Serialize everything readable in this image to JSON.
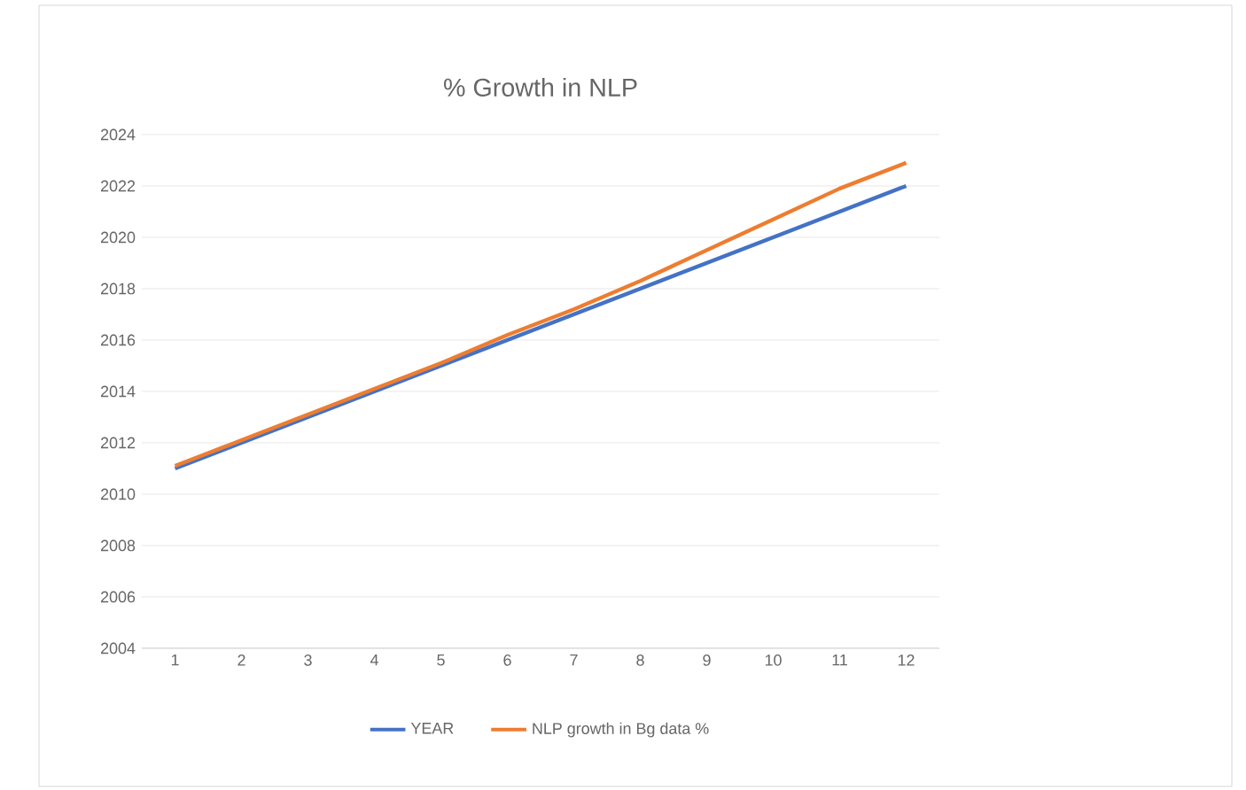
{
  "chart_data": {
    "type": "line",
    "title": "% Growth in NLP",
    "categories": [
      "1",
      "2",
      "3",
      "4",
      "5",
      "6",
      "7",
      "8",
      "9",
      "10",
      "11",
      "12"
    ],
    "series": [
      {
        "name": "YEAR",
        "color": "#4472c4",
        "values": [
          2011,
          2012,
          2013,
          2014,
          2015,
          2016,
          2017,
          2018,
          2019,
          2020,
          2021,
          2022
        ]
      },
      {
        "name": "NLP growth in Bg data %",
        "color": "#ed7d31",
        "values": [
          2011.1,
          2012.1,
          2013.1,
          2014.1,
          2015.1,
          2016.2,
          2017.2,
          2018.3,
          2019.5,
          2020.7,
          2021.9,
          2022.9
        ]
      }
    ],
    "ylim": [
      2004,
      2024
    ],
    "yticks": [
      2004,
      2006,
      2008,
      2010,
      2012,
      2014,
      2016,
      2018,
      2020,
      2022,
      2024
    ],
    "grid": "y",
    "legend": "bottom",
    "marker": "none",
    "line_style": "solid"
  }
}
